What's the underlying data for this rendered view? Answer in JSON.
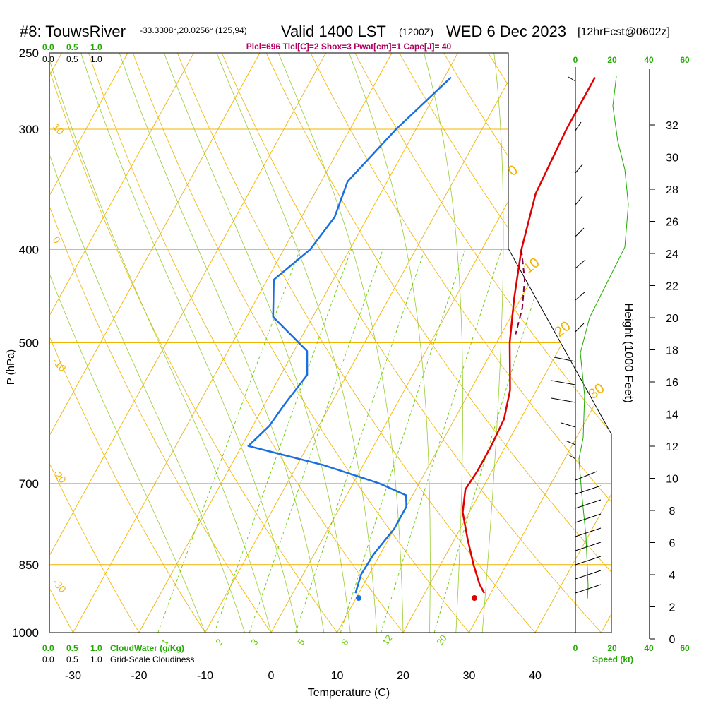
{
  "header": {
    "station": "#8: TouwsRiver",
    "coords": "-33.3308°,20.0256° (125,94)",
    "valid": "Valid 1400 LST",
    "zulu": "(1200Z)",
    "date": "WED 6 Dec 2023",
    "forecast": "[12hrFcst@0602z]",
    "indices": "Plcl=696 Tlcl[C]=2 Shox=3 Pwat[cm]=1 Cape[J]= 40"
  },
  "colors": {
    "isotherm": "#f0b400",
    "mixing": "#66cc00",
    "dry_adiabat": "#f0b400",
    "moist_adiabat": "#99cc33",
    "temperature": "#e00000",
    "dewpoint": "#1a6fe0",
    "parcel": "#800040",
    "green_text": "#22aa00",
    "indices_text": "#b00060"
  },
  "scales": {
    "cloudwater_top": [
      "0.0",
      "0.5",
      "1.0"
    ],
    "cloudiness_top": [
      "0.0",
      "0.5",
      "1.0"
    ],
    "cloudwater_bottom": [
      "0.0",
      "0.5",
      "1.0"
    ],
    "cloudiness_bottom": [
      "0.0",
      "0.5",
      "1.0"
    ],
    "cloudwater_label": "CloudWater (g/Kg)",
    "cloudiness_label": "Grid-Scale Cloudiness",
    "speed_ticks": [
      "0",
      "20",
      "40",
      "60"
    ],
    "speed_label": "Speed (kt)"
  },
  "chart_data": {
    "type": "line",
    "title": "Skew-T sounding",
    "xlabel": "Temperature (C)",
    "ylabel": "P (hPa)",
    "y2label": "Height (1000 Feet)",
    "x_ticks": [
      -30,
      -20,
      -10,
      0,
      10,
      20,
      30,
      40
    ],
    "pressure_ticks": [
      250,
      300,
      400,
      500,
      700,
      850,
      1000
    ],
    "height_ticks": [
      0,
      2,
      4,
      6,
      8,
      10,
      12,
      14,
      16,
      18,
      20,
      22,
      24,
      26,
      28,
      30,
      32
    ],
    "dry_adiabat_labels": [
      "10",
      "0",
      "-10",
      "-20",
      "-30"
    ],
    "moist_labels": [
      "0",
      "10",
      "20",
      "30"
    ],
    "mixing_ratio_labels": [
      "1",
      "2",
      "3",
      "5",
      "8",
      "12",
      "20"
    ],
    "series": [
      {
        "name": "Temperature",
        "points": [
          [
            2.8,
            265
          ],
          [
            2.8,
            300
          ],
          [
            3.5,
            350
          ],
          [
            6,
            400
          ],
          [
            9,
            450
          ],
          [
            12,
            500
          ],
          [
            16,
            560
          ],
          [
            17.5,
            600
          ],
          [
            17.8,
            640
          ],
          [
            17.8,
            680
          ],
          [
            17.5,
            710
          ],
          [
            19,
            750
          ],
          [
            22,
            800
          ],
          [
            25,
            850
          ],
          [
            27.5,
            890
          ],
          [
            29,
            910
          ]
        ]
      },
      {
        "name": "Dewpoint",
        "points": [
          [
            -19,
            265
          ],
          [
            -23,
            300
          ],
          [
            -26,
            340
          ],
          [
            -25,
            370
          ],
          [
            -26,
            400
          ],
          [
            -29,
            430
          ],
          [
            -26,
            470
          ],
          [
            -18,
            510
          ],
          [
            -16,
            540
          ],
          [
            -17,
            580
          ],
          [
            -17.5,
            610
          ],
          [
            -19,
            640
          ],
          [
            -6,
            670
          ],
          [
            4,
            700
          ],
          [
            9,
            720
          ],
          [
            10,
            740
          ],
          [
            10,
            780
          ],
          [
            9,
            830
          ],
          [
            8.8,
            870
          ],
          [
            9.5,
            910
          ]
        ]
      },
      {
        "name": "Parcel",
        "points": [
          [
            6,
            400
          ],
          [
            9,
            430
          ],
          [
            11,
            460
          ],
          [
            12.2,
            490
          ]
        ]
      }
    ],
    "surface_temperature": 31,
    "surface_dewpoint": 13.5,
    "wind_speed_range": [
      0,
      60
    ]
  }
}
